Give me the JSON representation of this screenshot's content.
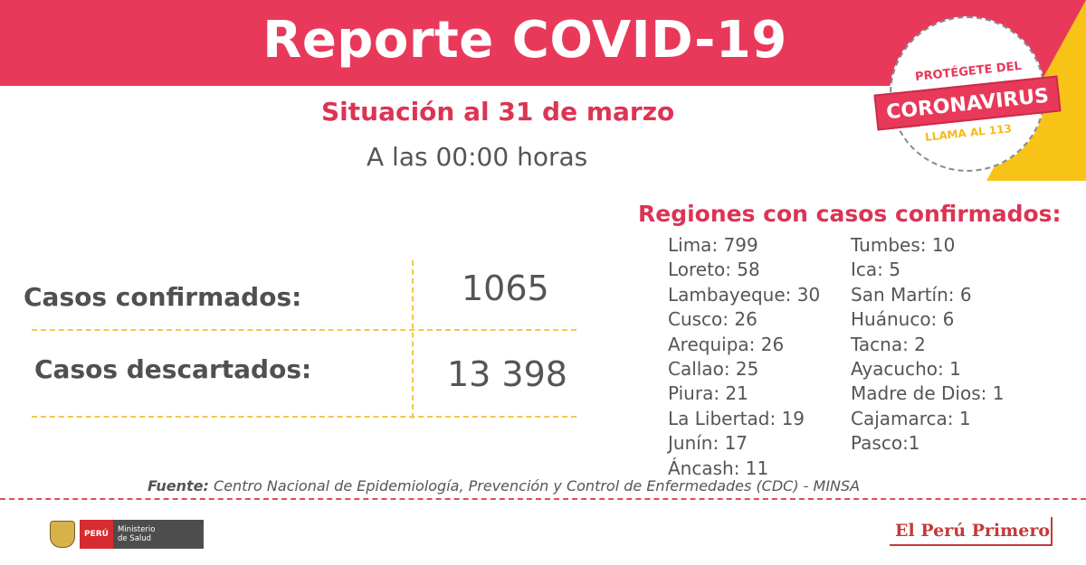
{
  "header": {
    "title": "Reporte COVID-19",
    "brand_color": "#e8395a",
    "accent_color": "#f7c316"
  },
  "situation": {
    "title": "Situación al 31 de marzo",
    "time": "A las 00:00 horas"
  },
  "stats": {
    "confirmed_label": "Casos confirmados:",
    "confirmed_value": "1065",
    "discarded_label": "Casos descartados:",
    "discarded_value": "13 398"
  },
  "regions": {
    "title": "Regiones con casos confirmados:",
    "left": [
      "Lima: 799",
      "Loreto: 58",
      "Lambayeque: 30",
      "Cusco: 26",
      "Arequipa: 26",
      "Callao: 25",
      "Piura: 21",
      "La Libertad: 19",
      "Junín: 17",
      "Áncash: 11"
    ],
    "right": [
      "Tumbes: 10",
      "Ica: 5",
      "San Martín: 6",
      "Huánuco: 6",
      "Tacna: 2",
      "Ayacucho: 1",
      "Madre de Dios: 1",
      "Cajamarca: 1",
      "Pasco:1"
    ]
  },
  "source": {
    "label": "Fuente:",
    "text": "Centro Nacional de Epidemiología, Prevención y Control de Enfermedades (CDC) - MINSA"
  },
  "stamp": {
    "top": "PROTÉGETE DEL",
    "banner": "CORONAVIRUS",
    "bottom": "LLAMA AL 113"
  },
  "footer": {
    "peru_label": "PERÚ",
    "ministry_line1": "Ministerio",
    "ministry_line2": "de Salud",
    "slogan": "El Perú Primero"
  }
}
